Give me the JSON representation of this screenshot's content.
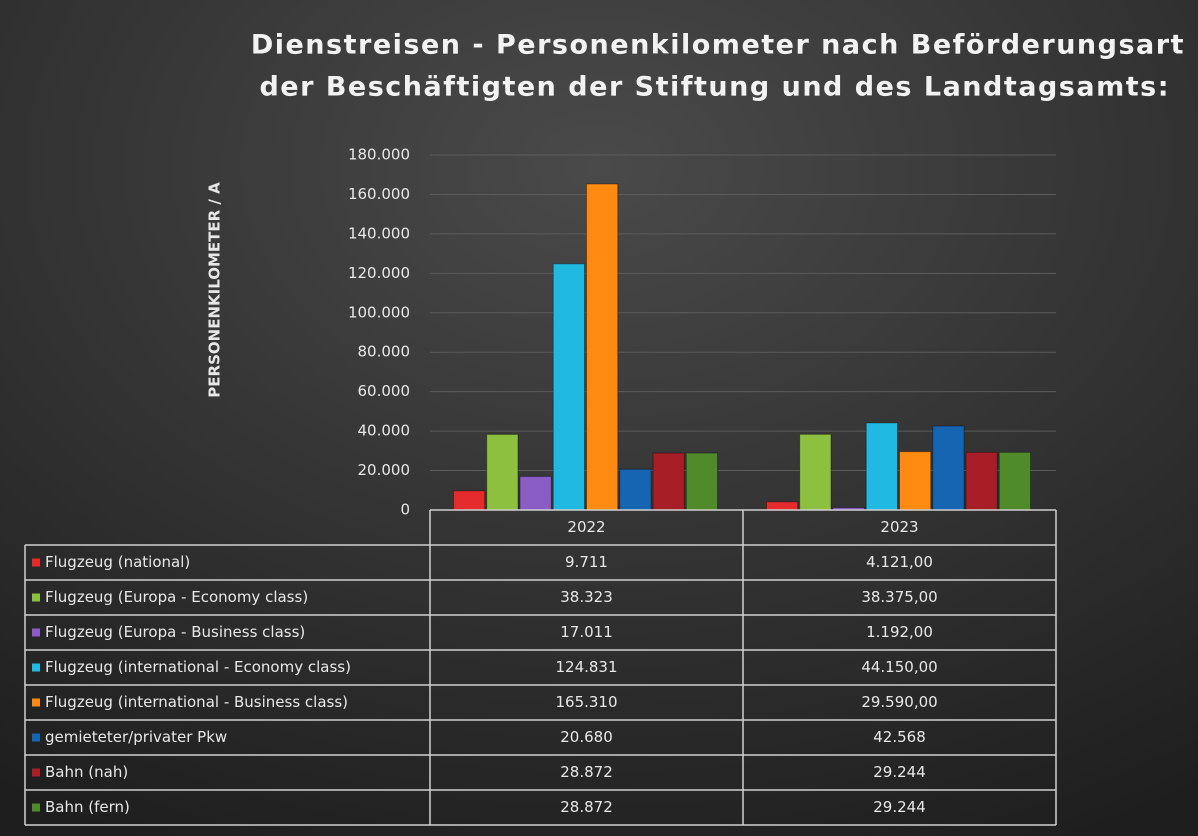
{
  "chart_data": {
    "type": "bar",
    "title": [
      "Dienstreisen - Personenkilometer nach Beförderungsart",
      "der Beschäftigten der Stiftung und des Landtagsamts:"
    ],
    "y_label": "PERSONENKILOMETER / A",
    "categories": [
      "2022",
      "2023"
    ],
    "ylim": [
      0,
      180000
    ],
    "yticks": [
      0,
      {
        "value": 20000,
        "label": "20.000"
      },
      {
        "value": 40000,
        "label": "40.000"
      },
      {
        "value": 60000,
        "label": "60.000"
      },
      {
        "value": 80000,
        "label": "80.000"
      },
      {
        "value": 100000,
        "label": "100.000"
      },
      {
        "value": 120000,
        "label": "120.000"
      },
      {
        "value": 140000,
        "label": "140.000"
      },
      {
        "value": 160000,
        "label": "160.000"
      },
      {
        "value": 180000,
        "label": "180.000"
      }
    ],
    "grid": true,
    "series": [
      {
        "name": "Flugzeug (national)",
        "color": "#e52b2b",
        "values": [
          9711,
          4121
        ],
        "value_labels": [
          "9.711",
          "4.121,00"
        ]
      },
      {
        "name": "Flugzeug (Europa - Economy class)",
        "color": "#8dc03f",
        "values": [
          38323,
          38375
        ],
        "value_labels": [
          "38.323",
          "38.375,00"
        ]
      },
      {
        "name": "Flugzeug (Europa - Business class)",
        "color": "#8a5cc6",
        "values": [
          17011,
          1192
        ],
        "value_labels": [
          "17.011",
          "1.192,00"
        ]
      },
      {
        "name": "Flugzeug (international - Economy class)",
        "color": "#1fb9e2",
        "values": [
          124831,
          44150
        ],
        "value_labels": [
          "124.831",
          "44.150,00"
        ]
      },
      {
        "name": "Flugzeug (international - Business class)",
        "color": "#ff8a12",
        "values": [
          165310,
          29590
        ],
        "value_labels": [
          "165.310",
          "29.590,00"
        ]
      },
      {
        "name": "gemieteter/privater Pkw",
        "color": "#1565b2",
        "values": [
          20680,
          42568
        ],
        "value_labels": [
          "20.680",
          "42.568"
        ]
      },
      {
        "name": "Bahn (nah)",
        "color": "#a81e26",
        "values": [
          28872,
          29244
        ],
        "value_labels": [
          "28.872",
          "29.244"
        ]
      },
      {
        "name": "Bahn (fern)",
        "color": "#4f8b2b",
        "values": [
          28872,
          29244
        ],
        "value_labels": [
          "28.872",
          "29.244"
        ]
      }
    ]
  }
}
